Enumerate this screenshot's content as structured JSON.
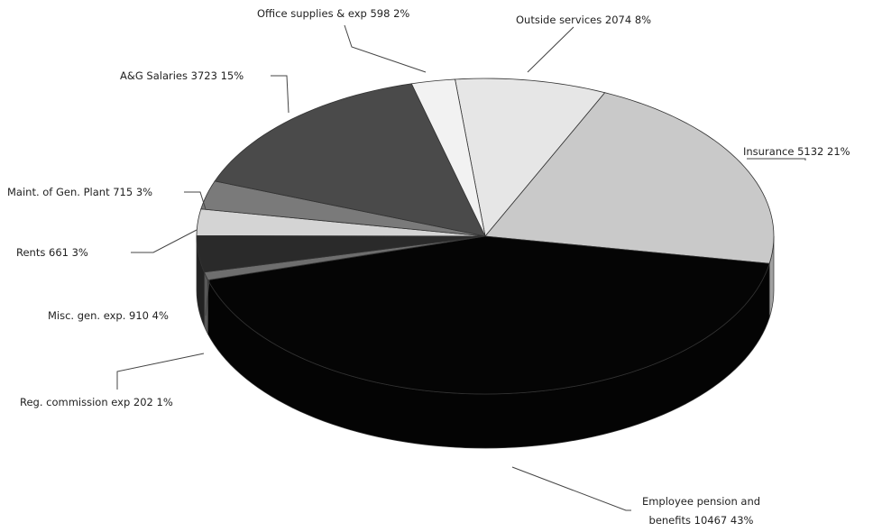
{
  "chart_data": {
    "type": "pie3d",
    "categories": [
      "Outside services",
      "Insurance",
      "Employee pension and benefits",
      "Reg. commission exp",
      "Misc. gen. exp.",
      "Rents",
      "Maint. of Gen. Plant",
      "A&G Salaries",
      "Office supplies & exp"
    ],
    "values": [
      2074,
      5132,
      10467,
      202,
      910,
      661,
      715,
      3723,
      598
    ],
    "percent_labels": [
      "8%",
      "21%",
      "43%",
      "1%",
      "4%",
      "3%",
      "3%",
      "15%",
      "2%"
    ],
    "colors": [
      "#e6e6e6",
      "#c9c9c9",
      "#050505",
      "#6e6e6e",
      "#2a2a2a",
      "#d4d4d4",
      "#7a7a7a",
      "#4a4a4a",
      "#f2f2f2"
    ]
  }
}
